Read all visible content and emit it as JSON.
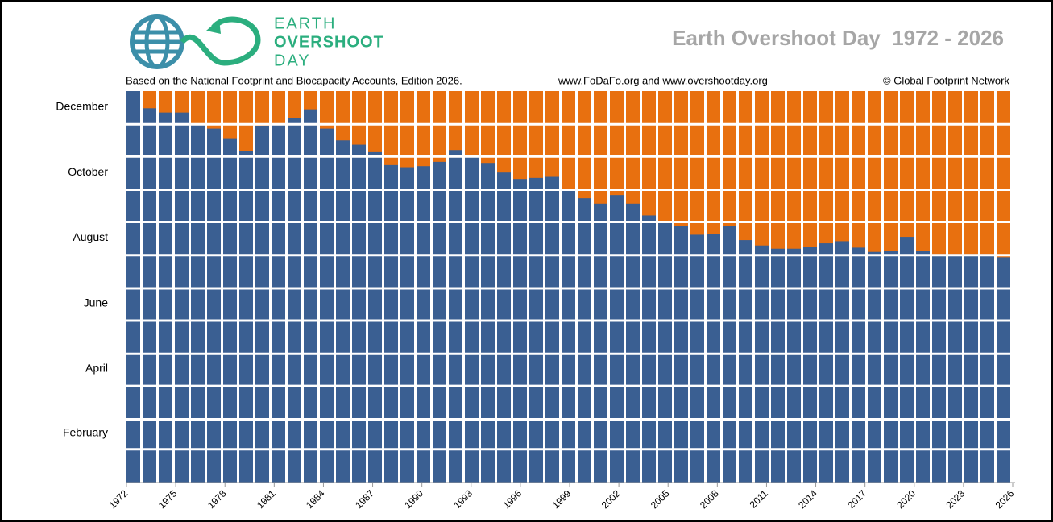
{
  "chart_data": {
    "type": "bar",
    "title": "Earth Overshoot Day  1972 - 2026",
    "logo_lines": [
      "EARTH",
      "OVERSHOOT",
      "DAY"
    ],
    "subtitle": "Based on the National Footprint and Biocapacity Accounts, Edition 2026.",
    "source": "www.FoDaFo.org and www.overshootday.org",
    "copyright": "© Global Footprint Network",
    "categories": [
      1972,
      1973,
      1974,
      1975,
      1976,
      1977,
      1978,
      1979,
      1980,
      1981,
      1982,
      1983,
      1984,
      1985,
      1986,
      1987,
      1988,
      1989,
      1990,
      1991,
      1992,
      1993,
      1994,
      1995,
      1996,
      1997,
      1998,
      1999,
      2000,
      2001,
      2002,
      2003,
      2004,
      2005,
      2006,
      2007,
      2008,
      2009,
      2010,
      2011,
      2012,
      2013,
      2014,
      2015,
      2016,
      2017,
      2018,
      2019,
      2020,
      2021,
      2022,
      2023,
      2024,
      2025,
      2026
    ],
    "values": [
      365,
      349,
      345,
      345,
      334,
      330,
      321,
      309,
      332,
      334,
      340,
      348,
      330,
      319,
      315,
      308,
      296,
      294,
      295,
      299,
      310,
      304,
      298,
      289,
      283,
      284,
      285,
      273,
      265,
      260,
      268,
      260,
      249,
      243,
      239,
      231,
      232,
      239,
      226,
      221,
      218,
      218,
      220,
      223,
      225,
      219,
      215,
      216,
      229,
      216,
      213,
      213,
      213,
      213,
      210
    ],
    "color": "#3a5f92",
    "background_color": "#e8700f",
    "xlim": [
      1972,
      2026
    ],
    "xticks": [
      1972,
      1975,
      1978,
      1981,
      1984,
      1987,
      1990,
      1993,
      1996,
      1999,
      2002,
      2005,
      2008,
      2011,
      2014,
      2017,
      2020,
      2023,
      2026
    ],
    "ylim": [
      0,
      365
    ],
    "yticks": [
      {
        "value": 46,
        "label": "February"
      },
      {
        "value": 106,
        "label": "April"
      },
      {
        "value": 167,
        "label": "June"
      },
      {
        "value": 228,
        "label": "August"
      },
      {
        "value": 289,
        "label": "October"
      },
      {
        "value": 350,
        "label": "December"
      }
    ],
    "ygrid": [
      31,
      59,
      90,
      120,
      151,
      181,
      212,
      243,
      273,
      304,
      334
    ],
    "grid": true
  }
}
